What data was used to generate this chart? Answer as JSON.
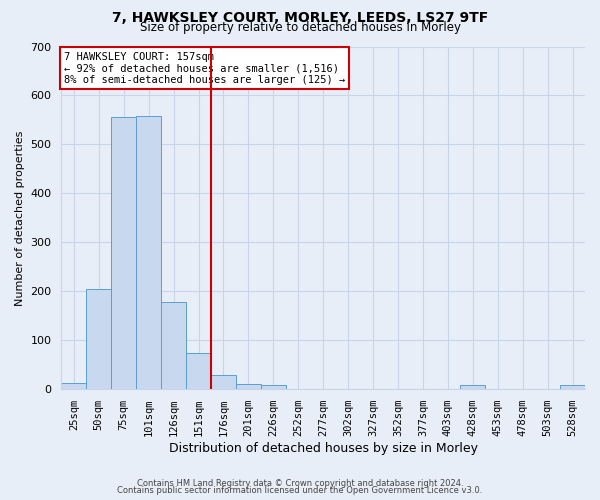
{
  "title1": "7, HAWKSLEY COURT, MORLEY, LEEDS, LS27 9TF",
  "title2": "Size of property relative to detached houses in Morley",
  "xlabel": "Distribution of detached houses by size in Morley",
  "ylabel": "Number of detached properties",
  "bar_labels": [
    "25sqm",
    "50sqm",
    "75sqm",
    "101sqm",
    "126sqm",
    "151sqm",
    "176sqm",
    "201sqm",
    "226sqm",
    "252sqm",
    "277sqm",
    "302sqm",
    "327sqm",
    "352sqm",
    "377sqm",
    "403sqm",
    "428sqm",
    "453sqm",
    "478sqm",
    "503sqm",
    "528sqm"
  ],
  "bar_values": [
    12,
    205,
    555,
    558,
    178,
    75,
    30,
    10,
    8,
    0,
    0,
    0,
    0,
    0,
    0,
    0,
    8,
    0,
    0,
    0,
    8
  ],
  "bar_color": "#c8d8ee",
  "bar_edge_color": "#5a9fd4",
  "vline_color": "#cc0000",
  "ylim": [
    0,
    700
  ],
  "yticks": [
    0,
    100,
    200,
    300,
    400,
    500,
    600,
    700
  ],
  "annotation_title": "7 HAWKSLEY COURT: 157sqm",
  "annotation_line1": "← 92% of detached houses are smaller (1,516)",
  "annotation_line2": "8% of semi-detached houses are larger (125) →",
  "annotation_box_color": "#ffffff",
  "annotation_box_edge": "#cc0000",
  "footer1": "Contains HM Land Registry data © Crown copyright and database right 2024.",
  "footer2": "Contains public sector information licensed under the Open Government Licence v3.0.",
  "background_color": "#e8eef8",
  "grid_color": "#c8d4e8",
  "spine_color": "#c8d4e8"
}
